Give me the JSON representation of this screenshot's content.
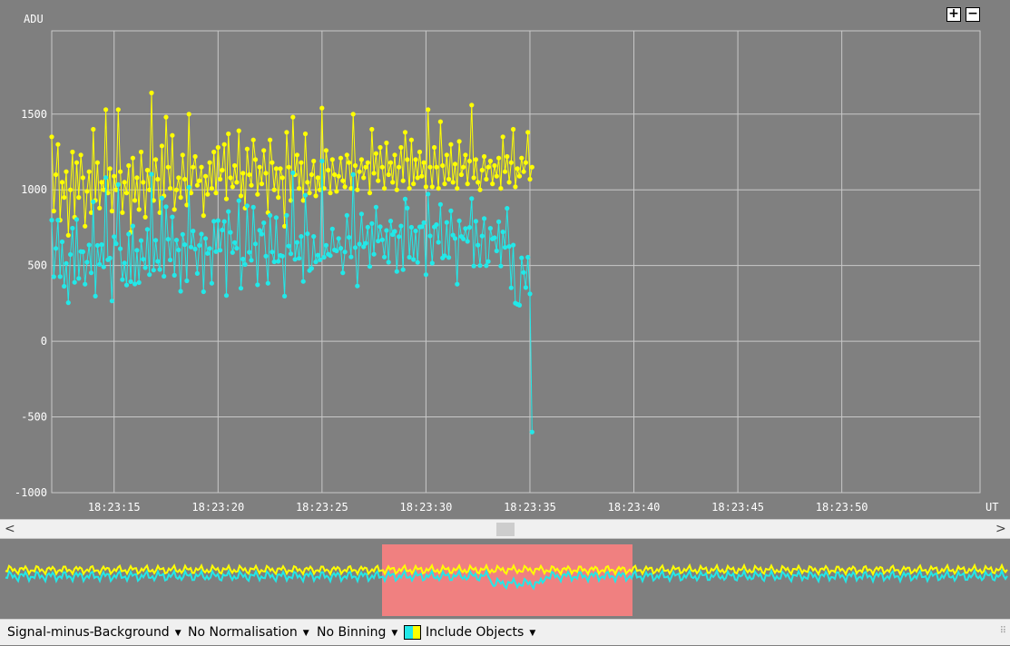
{
  "chart_data": {
    "type": "line",
    "ylabel": "ADU",
    "xlabel": "UT",
    "ylim": [
      -1000,
      2050
    ],
    "x_ticks": [
      "18:23:15",
      "18:23:20",
      "18:23:25",
      "18:23:30",
      "18:23:35",
      "18:23:40",
      "18:23:45",
      "18:23:50"
    ],
    "x_tick_seconds": [
      15,
      20,
      25,
      30,
      35,
      40,
      45,
      50
    ],
    "x_range_seconds": [
      12.0,
      56.65
    ],
    "y_ticks": [
      1500,
      1000,
      500,
      0,
      -500,
      -1000
    ],
    "grid": true,
    "markers": true,
    "series": [
      {
        "color": "#ffff00",
        "x_start_seconds": 12.0,
        "x_step_seconds": 0.1,
        "values": [
          1350,
          860,
          1100,
          1300,
          800,
          1050,
          950,
          1120,
          700,
          1000,
          1250,
          820,
          1180,
          950,
          1230,
          1080,
          760,
          990,
          1120,
          850,
          1400,
          930,
          1180,
          880,
          1050,
          1000,
          1530,
          980,
          1140,
          860,
          1090,
          1000,
          1530,
          1120,
          850,
          1050,
          980,
          1160,
          720,
          1210,
          930,
          1080,
          870,
          1250,
          1050,
          820,
          1130,
          1000,
          1640,
          930,
          1200,
          1070,
          850,
          1290,
          960,
          1480,
          1150,
          1010,
          1360,
          870,
          1000,
          1080,
          950,
          1230,
          1070,
          900,
          1500,
          980,
          1150,
          1220,
          1030,
          1060,
          1150,
          830,
          1090,
          970,
          1180,
          1010,
          1250,
          980,
          1280,
          1070,
          1130,
          1300,
          940,
          1370,
          1080,
          1020,
          1160,
          1050,
          1390,
          960,
          1110,
          880,
          1270,
          1100,
          1030,
          1330,
          1200,
          970,
          1150,
          1040,
          1260,
          1110,
          850,
          1330,
          1180,
          1000,
          1140,
          950,
          1140,
          1080,
          760,
          1380,
          1150,
          930,
          1480,
          1100,
          1230,
          1010,
          1180,
          930,
          1370,
          1050,
          980,
          1100,
          1190,
          960,
          1080,
          1000,
          1540,
          1010,
          1260,
          1130,
          980,
          1200,
          1100,
          990,
          1090,
          1210,
          1060,
          1020,
          1230,
          1180,
          1010,
          1500,
          1160,
          1000,
          1120,
          1200,
          1080,
          1150,
          1180,
          980,
          1400,
          1110,
          1240,
          1060,
          1280,
          1150,
          1010,
          1310,
          1100,
          1180,
          1050,
          1230,
          1000,
          1150,
          1280,
          1060,
          1380,
          1200,
          1010,
          1330,
          1040,
          1200,
          1080,
          1250,
          1090,
          1180,
          1020,
          1530,
          1150,
          1020,
          1280,
          1150,
          1010,
          1450,
          1160,
          1040,
          1230,
          1070,
          1300,
          1050,
          1170,
          1010,
          1320,
          1100,
          1150,
          1230,
          1040,
          1190,
          1560,
          1080,
          1200,
          1050,
          1000,
          1130,
          1220,
          1070,
          1150,
          1190,
          1040,
          1160,
          1090,
          1210,
          1010,
          1350,
          1120,
          1220,
          1050,
          1180,
          1400,
          1020,
          1140,
          1090,
          1210,
          1120,
          1180,
          1380,
          1070,
          1150
        ],
        "values_scale": "display_only"
      }
    ]
  },
  "plot": {
    "background": "#808080",
    "grid_color": "#c8c8c8",
    "series_colors": [
      "#ffff00",
      "#22e8e8"
    ]
  },
  "statusbar": {
    "signal_label": "Signal-minus-Background",
    "normalisation_label": "No Normalisation",
    "binning_label": "No Binning",
    "objects_label": "Include Objects"
  },
  "zoom": {
    "in_label": "+",
    "out_label": "−"
  },
  "scroll": {
    "left_arrow": "<",
    "right_arrow": ">"
  },
  "overview": {
    "highlight_color": "#f08080"
  }
}
